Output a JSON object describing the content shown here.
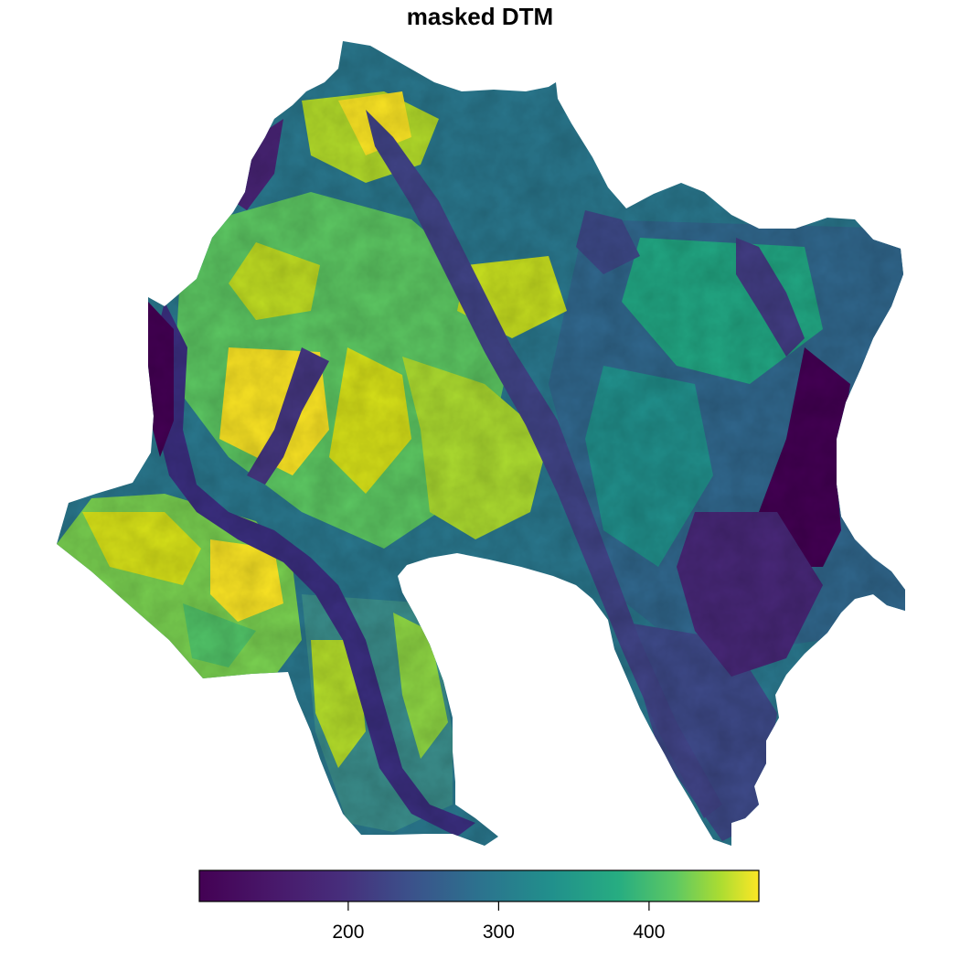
{
  "map": {
    "title": "masked DTM",
    "palette": "viridis",
    "colors": {
      "low": "#440154",
      "low_mid": "#3b528b",
      "mid": "#21908c",
      "high_mid": "#5dc863",
      "high": "#fde725",
      "background": "#ffffff"
    },
    "legend": {
      "placement": "bottom",
      "orientation": "horizontal",
      "range": [
        101,
        473
      ],
      "ticks": [
        {
          "value": 200,
          "label": "200"
        },
        {
          "value": 300,
          "label": "300"
        },
        {
          "value": 400,
          "label": "400"
        }
      ]
    }
  }
}
